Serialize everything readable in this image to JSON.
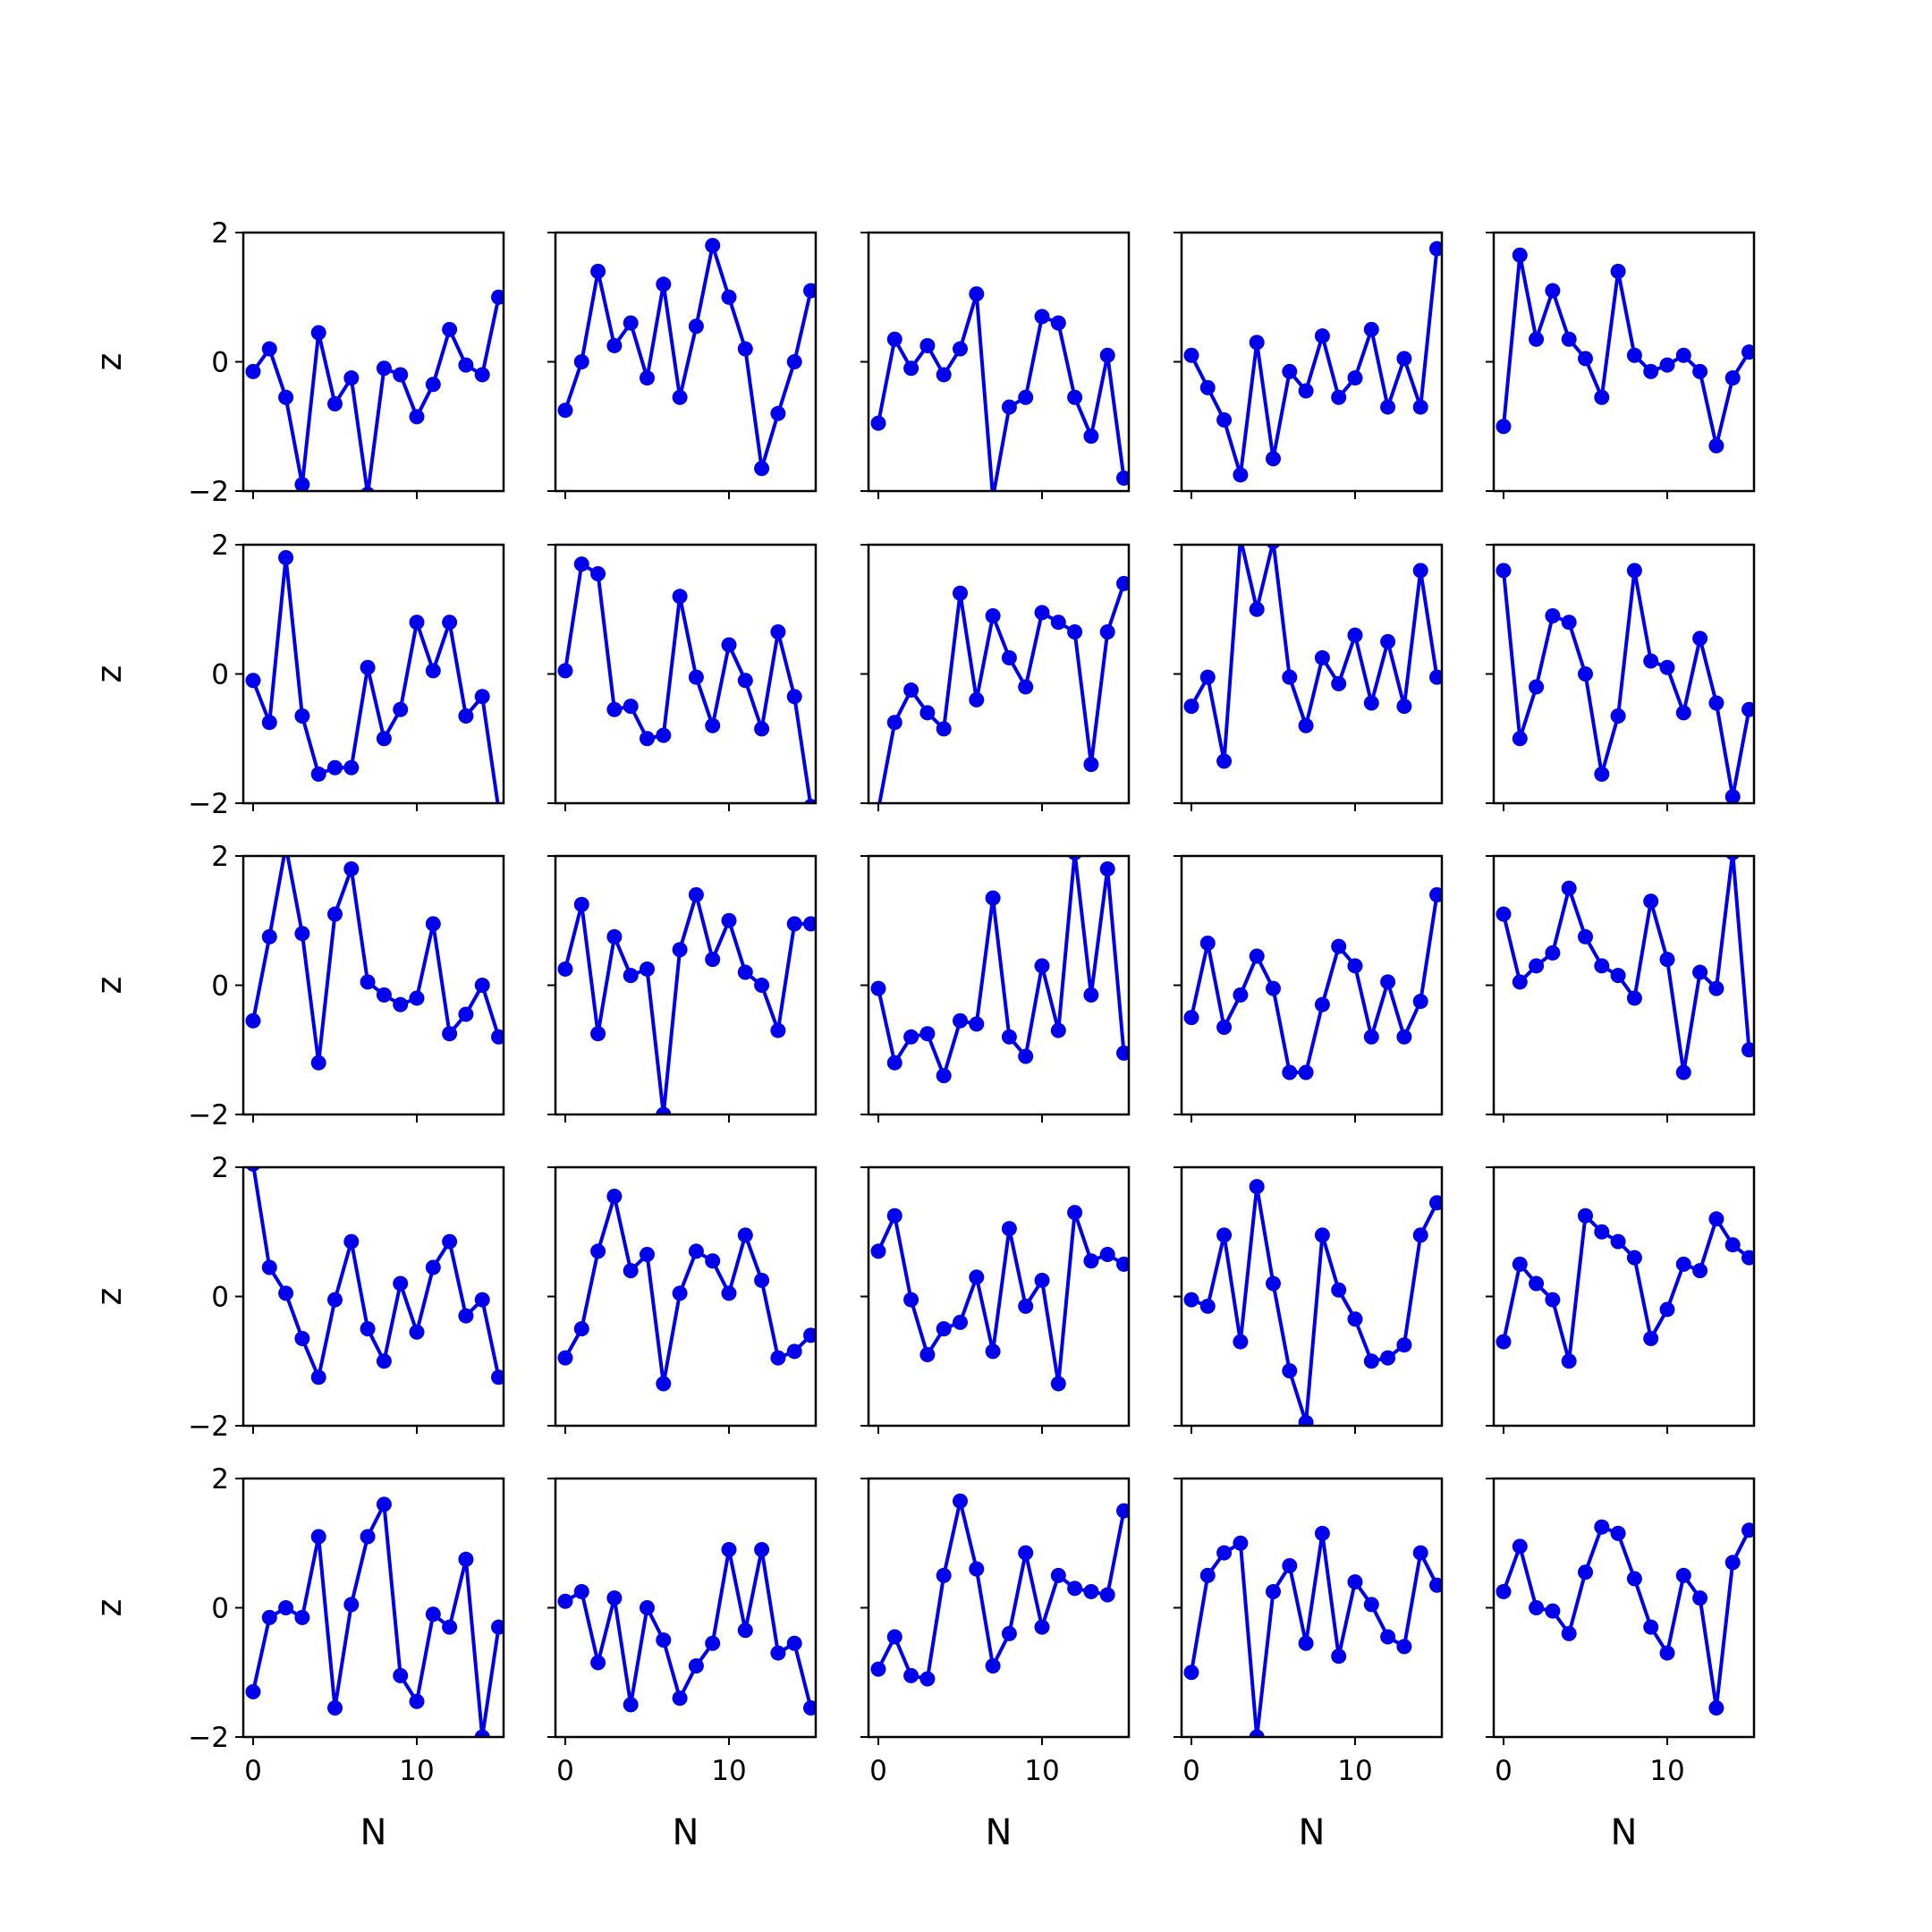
{
  "figure": {
    "line_color": "#0000ee",
    "axis_color": "#000000",
    "background": "#ffffff"
  },
  "chart_data": {
    "type": "line",
    "layout": "5x5 grid of small multiples",
    "shared_axes": true,
    "x": [
      0,
      1,
      2,
      3,
      4,
      5,
      6,
      7,
      8,
      9,
      10,
      11,
      12,
      13,
      14,
      15
    ],
    "xlim": [
      -0.6,
      15.3
    ],
    "ylim": [
      -2,
      2
    ],
    "xticks": [
      0,
      10
    ],
    "yticks": [
      2,
      0,
      -2
    ],
    "xtick_labels": [
      "0",
      "10"
    ],
    "ytick_labels": [
      "2",
      "0",
      "−2"
    ],
    "xlabel": "N",
    "ylabel": "z",
    "grid": false,
    "marker": "circle",
    "panels": [
      [
        [
          -0.15,
          0.2,
          -0.55,
          -1.9,
          0.45,
          -0.65,
          -0.25,
          -2.05,
          -0.1,
          -0.2,
          -0.85,
          -0.35,
          0.5,
          -0.05,
          -0.2,
          1.0
        ],
        [
          -0.75,
          0.0,
          1.4,
          0.25,
          0.6,
          -0.25,
          1.2,
          -0.55,
          0.55,
          1.8,
          1.0,
          0.2,
          -1.65,
          -0.8,
          0.0,
          1.1
        ],
        [
          -0.95,
          0.35,
          -0.1,
          0.25,
          -0.2,
          0.2,
          1.05,
          -2.1,
          -0.7,
          -0.55,
          0.7,
          0.6,
          -0.55,
          -1.15,
          0.1,
          -1.8
        ],
        [
          0.1,
          -0.4,
          -0.9,
          -1.75,
          0.3,
          -1.5,
          -0.15,
          -0.45,
          0.4,
          -0.55,
          -0.25,
          0.5,
          -0.7,
          0.05,
          -0.7,
          1.75
        ],
        [
          -1.0,
          1.65,
          0.35,
          1.1,
          0.35,
          0.05,
          -0.55,
          1.4,
          0.1,
          -0.15,
          -0.05,
          0.1,
          -0.15,
          -1.3,
          -0.25,
          0.15
        ]
      ],
      [
        [
          -0.1,
          -0.75,
          1.8,
          -0.65,
          -1.55,
          -1.45,
          -1.45,
          0.1,
          -1.0,
          -0.55,
          0.8,
          0.05,
          0.8,
          -0.65,
          -0.35,
          -2.1
        ],
        [
          0.05,
          1.7,
          1.55,
          -0.55,
          -0.5,
          -1.0,
          -0.95,
          1.2,
          -0.05,
          -0.8,
          0.45,
          -0.1,
          -0.85,
          0.65,
          -0.35,
          -2.05
        ],
        [
          -2.1,
          -0.75,
          -0.25,
          -0.6,
          -0.85,
          1.25,
          -0.4,
          0.9,
          0.25,
          -0.2,
          0.95,
          0.8,
          0.65,
          -1.4,
          0.65,
          1.4
        ],
        [
          -0.5,
          -0.05,
          -1.35,
          2.1,
          1.0,
          2.05,
          -0.05,
          -0.8,
          0.25,
          -0.15,
          0.6,
          -0.45,
          0.5,
          -0.5,
          1.6,
          -0.05
        ],
        [
          1.6,
          -1.0,
          -0.2,
          0.9,
          0.8,
          0.0,
          -1.55,
          -0.65,
          1.6,
          0.2,
          0.1,
          -0.6,
          0.55,
          -0.45,
          -1.9,
          -0.55
        ]
      ],
      [
        [
          -0.55,
          0.75,
          2.15,
          0.8,
          -1.2,
          1.1,
          1.8,
          0.05,
          -0.15,
          -0.3,
          -0.2,
          0.95,
          -0.75,
          -0.45,
          0.0,
          -0.8
        ],
        [
          0.25,
          1.25,
          -0.75,
          0.75,
          0.15,
          0.25,
          -2.0,
          0.55,
          1.4,
          0.4,
          1.0,
          0.2,
          0.0,
          -0.7,
          0.95,
          0.95
        ],
        [
          -0.05,
          -1.2,
          -0.8,
          -0.75,
          -1.4,
          -0.55,
          -0.6,
          1.35,
          -0.8,
          -1.1,
          0.3,
          -0.7,
          2.05,
          -0.15,
          1.8,
          -1.05
        ],
        [
          -0.5,
          0.65,
          -0.65,
          -0.15,
          0.45,
          -0.05,
          -1.35,
          -1.35,
          -0.3,
          0.6,
          0.3,
          -0.8,
          0.05,
          -0.8,
          -0.25,
          1.4
        ],
        [
          1.1,
          0.05,
          0.3,
          0.5,
          1.5,
          0.75,
          0.3,
          0.15,
          -0.2,
          1.3,
          0.4,
          -1.35,
          0.2,
          -0.05,
          2.05,
          -1.0
        ]
      ],
      [
        [
          2.05,
          0.45,
          0.05,
          -0.65,
          -1.25,
          -0.05,
          0.85,
          -0.5,
          -1.0,
          0.2,
          -0.55,
          0.45,
          0.85,
          -0.3,
          -0.05,
          -1.25
        ],
        [
          -0.95,
          -0.5,
          0.7,
          1.55,
          0.4,
          0.65,
          -1.35,
          0.05,
          0.7,
          0.55,
          0.05,
          0.95,
          0.25,
          -0.95,
          -0.85,
          -0.6
        ],
        [
          0.7,
          1.25,
          -0.05,
          -0.9,
          -0.5,
          -0.4,
          0.3,
          -0.85,
          1.05,
          -0.15,
          0.25,
          -1.35,
          1.3,
          0.55,
          0.65,
          0.5
        ],
        [
          -0.05,
          -0.15,
          0.95,
          -0.7,
          1.7,
          0.2,
          -1.15,
          -1.95,
          0.95,
          0.1,
          -0.35,
          -1.0,
          -0.95,
          -0.75,
          0.95,
          1.45
        ],
        [
          -0.7,
          0.5,
          0.2,
          -0.05,
          -1.0,
          1.25,
          1.0,
          0.85,
          0.6,
          -0.65,
          -0.2,
          0.5,
          0.4,
          1.2,
          0.8,
          0.6
        ]
      ],
      [
        [
          -1.3,
          -0.15,
          0.0,
          -0.15,
          1.1,
          -1.55,
          0.05,
          1.1,
          1.6,
          -1.05,
          -1.45,
          -0.1,
          -0.3,
          0.75,
          -2.0,
          -0.3
        ],
        [
          0.1,
          0.25,
          -0.85,
          0.15,
          -1.5,
          0.0,
          -0.5,
          -1.4,
          -0.9,
          -0.55,
          0.9,
          -0.35,
          0.9,
          -0.7,
          -0.55,
          -1.55
        ],
        [
          -0.95,
          -0.45,
          -1.05,
          -1.1,
          0.5,
          1.65,
          0.6,
          -0.9,
          -0.4,
          0.85,
          -0.3,
          0.5,
          0.3,
          0.25,
          0.2,
          1.5
        ],
        [
          -1.0,
          0.5,
          0.85,
          1.0,
          -2.0,
          0.25,
          0.65,
          -0.55,
          1.15,
          -0.75,
          0.4,
          0.05,
          -0.45,
          -0.6,
          0.85,
          0.35
        ],
        [
          0.25,
          0.95,
          0.0,
          -0.05,
          -0.4,
          0.55,
          1.25,
          1.15,
          0.45,
          -0.3,
          -0.7,
          0.5,
          0.15,
          -1.55,
          0.7,
          1.2
        ]
      ]
    ]
  }
}
